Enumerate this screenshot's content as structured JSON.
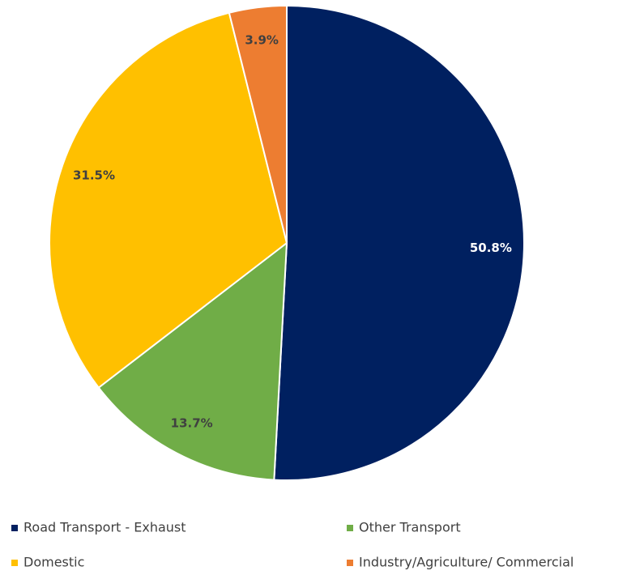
{
  "chart_data": {
    "type": "pie",
    "categories": [
      "Road Transport - Exhaust",
      "Other Transport",
      "Domestic",
      "Industry/Agriculture/ Commercial"
    ],
    "values": [
      50.8,
      13.7,
      31.5,
      3.9
    ],
    "value_labels": [
      "50.8%",
      "13.7%",
      "31.5%",
      "3.9%"
    ],
    "colors": [
      "#002060",
      "#70ad47",
      "#ffc000",
      "#ed7d31"
    ],
    "legend": "bottom"
  }
}
